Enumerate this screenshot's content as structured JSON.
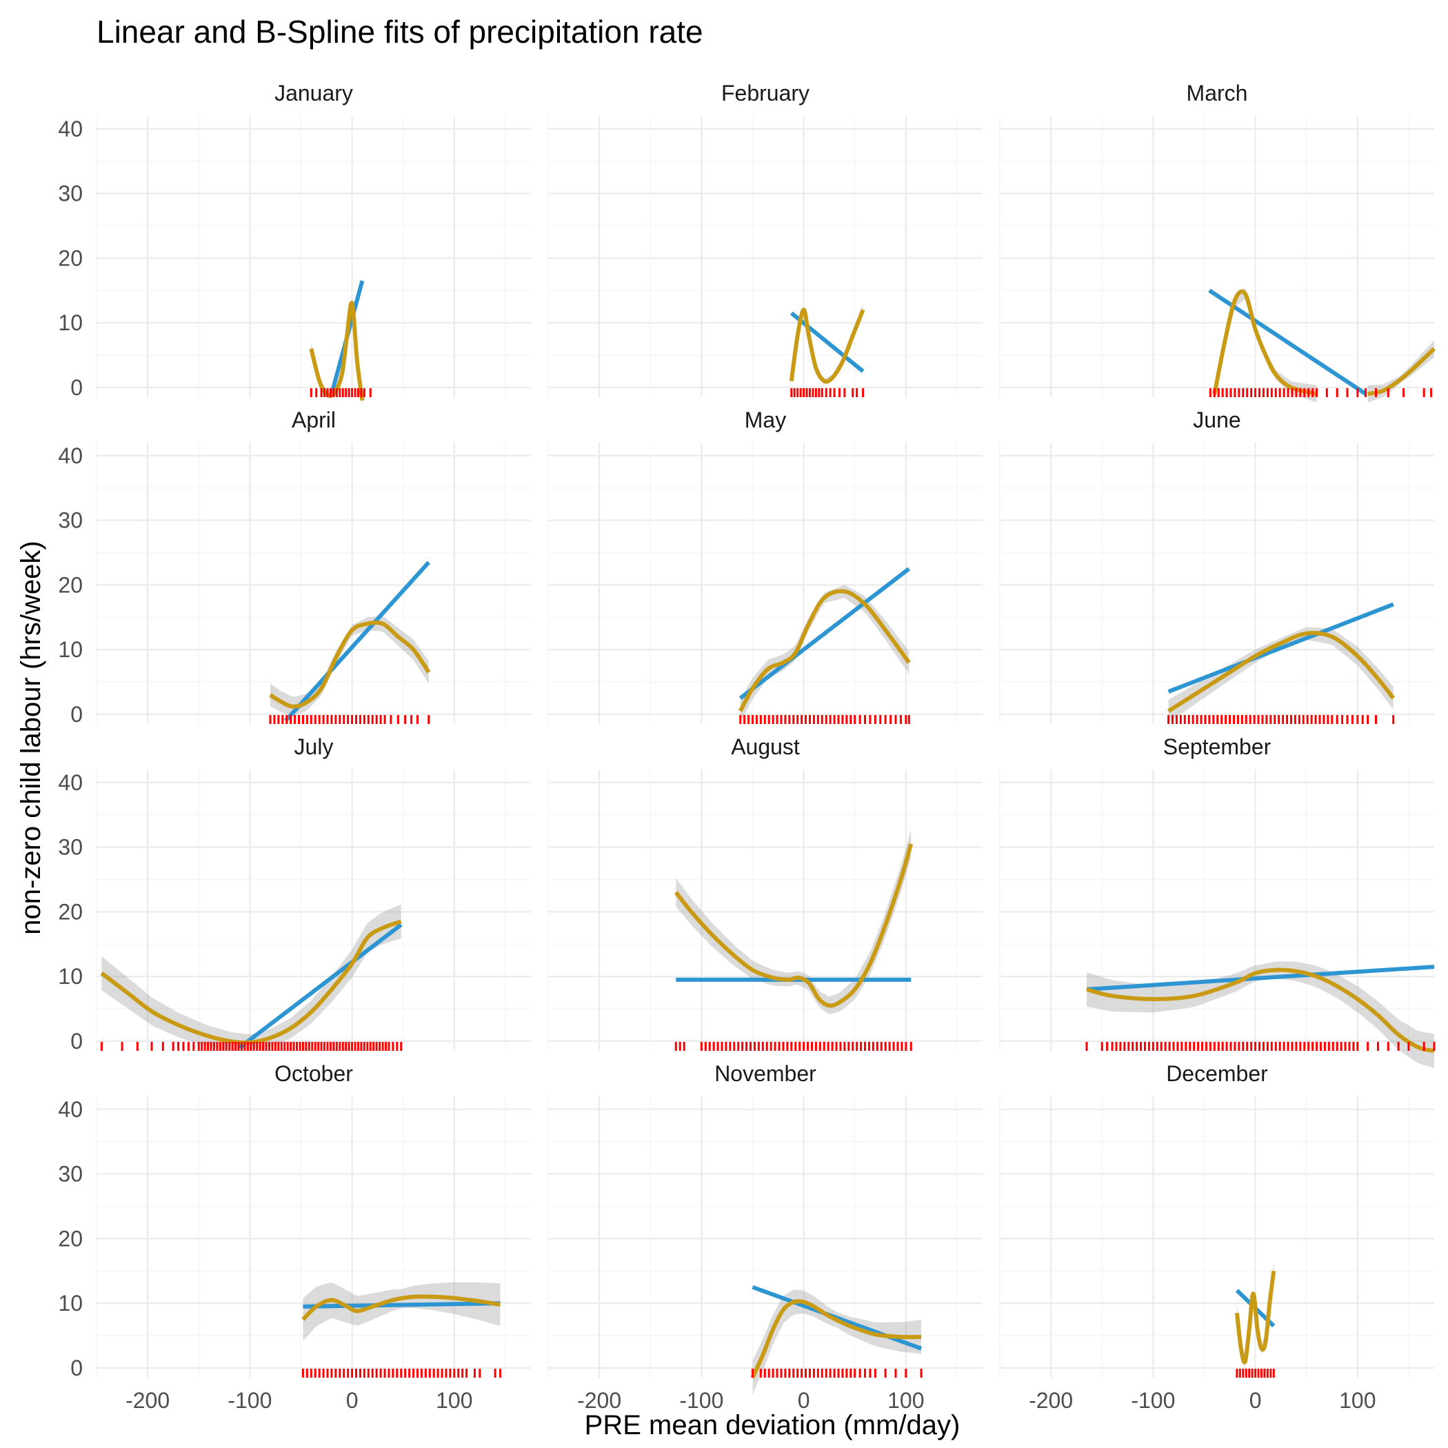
{
  "chart_data": {
    "type": "line",
    "title": "Linear and B-Spline fits of precipitation rate",
    "xlabel": "PRE mean deviation (mm/day)",
    "ylabel": "non-zero child labour (hrs/week)",
    "xlim": [
      -250,
      175
    ],
    "ylim": [
      -1.5,
      42
    ],
    "x_ticks": [
      -200,
      -100,
      0,
      100
    ],
    "y_ticks": [
      0,
      10,
      20,
      30,
      40
    ],
    "grid": true,
    "legend": "none",
    "colors": {
      "linear": "#2d96d2",
      "spline": "#c99a14",
      "band": "#999999",
      "rug": "#ff0000"
    },
    "facets": [
      {
        "name": "January",
        "linear": {
          "x": [
            -20,
            10
          ],
          "y": [
            -1,
            16.5
          ]
        },
        "spline": {
          "x": [
            -40,
            -32,
            -25,
            -18,
            -10,
            -5,
            0,
            5,
            10
          ],
          "y": [
            6,
            1,
            -1,
            -1,
            2,
            8,
            13,
            4,
            -2
          ]
        },
        "band": 0.4,
        "rug": [
          -40,
          -35,
          -30,
          -27,
          -24,
          -21,
          -18,
          -15,
          -12,
          -9,
          -6,
          -3,
          0,
          3,
          6,
          9,
          12,
          18
        ]
      },
      {
        "name": "February",
        "linear": {
          "x": [
            -12,
            58
          ],
          "y": [
            11.5,
            2.5
          ]
        },
        "spline": {
          "x": [
            -12,
            -6,
            0,
            5,
            12,
            20,
            28,
            38,
            48,
            58
          ],
          "y": [
            1,
            8,
            12,
            8,
            3,
            1,
            1.5,
            4,
            8,
            12
          ]
        },
        "band": 0.4,
        "rug": [
          -12,
          -9,
          -6,
          -3,
          0,
          3,
          6,
          9,
          12,
          15,
          18,
          22,
          26,
          30,
          35,
          40,
          48,
          52,
          58
        ]
      },
      {
        "name": "March",
        "linear": {
          "x": [
            -45,
            108
          ],
          "y": [
            15,
            -1
          ]
        },
        "spline": {
          "x": [
            -40,
            -30,
            -20,
            -10,
            0,
            10,
            20,
            35,
            60
          ],
          "y": [
            -1,
            7,
            13.5,
            14.5,
            9,
            5,
            2,
            0,
            -1
          ]
        },
        "spline2": {
          "x": [
            110,
            125,
            140,
            155,
            175
          ],
          "y": [
            -1,
            -0.5,
            1,
            3,
            6
          ]
        },
        "band": 0.6,
        "rug": [
          -44,
          -40,
          -36,
          -32,
          -28,
          -24,
          -20,
          -16,
          -12,
          -8,
          -4,
          0,
          4,
          8,
          12,
          16,
          20,
          24,
          28,
          32,
          36,
          40,
          44,
          48,
          52,
          56,
          60,
          70,
          80,
          90,
          100,
          108,
          118,
          130,
          145,
          165,
          172
        ]
      },
      {
        "name": "April",
        "linear": {
          "x": [
            -65,
            75
          ],
          "y": [
            -1,
            23.5
          ]
        },
        "spline": {
          "x": [
            -80,
            -70,
            -58,
            -45,
            -30,
            -15,
            0,
            15,
            30,
            45,
            60,
            75
          ],
          "y": [
            3,
            2,
            1.2,
            1.8,
            4,
            9,
            13,
            14,
            14,
            12,
            10,
            6.5
          ]
        },
        "band": 0.8,
        "rug": [
          -80,
          -76,
          -72,
          -68,
          -64,
          -60,
          -56,
          -52,
          -48,
          -44,
          -40,
          -36,
          -32,
          -28,
          -24,
          -20,
          -16,
          -12,
          -8,
          -4,
          0,
          4,
          8,
          12,
          16,
          20,
          24,
          28,
          32,
          38,
          45,
          52,
          58,
          64,
          75
        ]
      },
      {
        "name": "May",
        "linear": {
          "x": [
            -62,
            103
          ],
          "y": [
            2.5,
            22.5
          ]
        },
        "spline": {
          "x": [
            -62,
            -50,
            -35,
            -20,
            -8,
            5,
            20,
            40,
            60,
            80,
            103
          ],
          "y": [
            0.5,
            4,
            7,
            8,
            9.5,
            14,
            18,
            19,
            17,
            13,
            8
          ]
        },
        "band": 0.8,
        "rug": [
          -62,
          -58,
          -54,
          -50,
          -46,
          -42,
          -38,
          -34,
          -30,
          -26,
          -22,
          -18,
          -14,
          -10,
          -6,
          -2,
          2,
          6,
          10,
          14,
          18,
          22,
          26,
          30,
          34,
          38,
          42,
          46,
          50,
          55,
          60,
          65,
          70,
          75,
          80,
          85,
          90,
          95,
          100,
          103
        ]
      },
      {
        "name": "June",
        "linear": {
          "x": [
            -85,
            135
          ],
          "y": [
            3.5,
            17
          ]
        },
        "spline": {
          "x": [
            -85,
            -60,
            -30,
            0,
            25,
            50,
            75,
            100,
            120,
            135
          ],
          "y": [
            0.5,
            3,
            6,
            9,
            11,
            12.5,
            12,
            9,
            5.5,
            2.5
          ]
        },
        "band": 0.8,
        "rug": [
          -85,
          -81,
          -77,
          -73,
          -69,
          -65,
          -61,
          -57,
          -53,
          -49,
          -45,
          -41,
          -37,
          -33,
          -29,
          -25,
          -21,
          -17,
          -13,
          -9,
          -5,
          -1,
          3,
          7,
          11,
          15,
          19,
          23,
          27,
          31,
          35,
          39,
          43,
          47,
          51,
          55,
          59,
          63,
          67,
          71,
          75,
          80,
          85,
          90,
          95,
          100,
          105,
          110,
          118,
          135
        ]
      },
      {
        "name": "July",
        "linear": {
          "x": [
            -110,
            48
          ],
          "y": [
            -1,
            18
          ]
        },
        "spline": {
          "x": [
            -245,
            -220,
            -195,
            -170,
            -145,
            -120,
            -100,
            -80,
            -60,
            -40,
            -20,
            0,
            15,
            30,
            48
          ],
          "y": [
            10.5,
            7.5,
            4.5,
            2.5,
            1,
            0,
            -0.2,
            0.5,
            2,
            4.5,
            8,
            12,
            16,
            17.5,
            18.5
          ]
        },
        "band": 1.2,
        "rug": [
          -245,
          -225,
          -210,
          -196,
          -185,
          -175,
          -170,
          -165,
          -160,
          -155,
          -150,
          -147,
          -144,
          -141,
          -138,
          -135,
          -132,
          -129,
          -126,
          -123,
          -120,
          -117,
          -114,
          -111,
          -108,
          -105,
          -102,
          -99,
          -96,
          -93,
          -90,
          -87,
          -84,
          -81,
          -78,
          -75,
          -72,
          -69,
          -66,
          -63,
          -60,
          -57,
          -54,
          -51,
          -48,
          -45,
          -42,
          -39,
          -36,
          -33,
          -30,
          -27,
          -24,
          -21,
          -18,
          -15,
          -12,
          -9,
          -6,
          -3,
          0,
          3,
          6,
          9,
          12,
          15,
          18,
          21,
          24,
          27,
          30,
          33,
          36,
          40,
          44,
          48
        ]
      },
      {
        "name": "August",
        "linear": {
          "x": [
            -125,
            105
          ],
          "y": [
            9.5,
            9.5
          ]
        },
        "spline": {
          "x": [
            -125,
            -110,
            -90,
            -70,
            -50,
            -30,
            -15,
            -5,
            5,
            15,
            25,
            35,
            50,
            65,
            80,
            95,
            105
          ],
          "y": [
            23,
            20,
            16.5,
            13.5,
            11,
            9.8,
            9.5,
            9.8,
            9,
            6.5,
            5.5,
            6,
            8,
            12,
            18,
            25,
            30.5
          ]
        },
        "band": 1,
        "rug": [
          -125,
          -121,
          -117,
          -100,
          -96,
          -92,
          -88,
          -84,
          -80,
          -76,
          -72,
          -68,
          -64,
          -60,
          -56,
          -52,
          -48,
          -44,
          -40,
          -36,
          -32,
          -28,
          -24,
          -20,
          -16,
          -12,
          -8,
          -4,
          0,
          4,
          8,
          12,
          16,
          20,
          24,
          28,
          32,
          36,
          40,
          44,
          48,
          52,
          56,
          60,
          64,
          68,
          72,
          76,
          80,
          84,
          88,
          92,
          96,
          100,
          105
        ]
      },
      {
        "name": "September",
        "linear": {
          "x": [
            -165,
            175
          ],
          "y": [
            8,
            11.5
          ]
        },
        "spline": {
          "x": [
            -165,
            -140,
            -100,
            -60,
            -20,
            0,
            20,
            40,
            60,
            80,
            100,
            120,
            140,
            160,
            175
          ],
          "y": [
            8,
            7,
            6.5,
            7,
            9,
            10.5,
            11,
            10.8,
            10,
            8.5,
            6.5,
            4,
            1,
            -1,
            -1.5
          ]
        },
        "band": 1.2,
        "rug": [
          -165,
          -150,
          -145,
          -140,
          -136,
          -132,
          -128,
          -124,
          -120,
          -116,
          -112,
          -108,
          -104,
          -100,
          -96,
          -92,
          -88,
          -84,
          -80,
          -76,
          -72,
          -68,
          -64,
          -60,
          -56,
          -52,
          -48,
          -44,
          -40,
          -36,
          -32,
          -28,
          -24,
          -20,
          -16,
          -12,
          -8,
          -4,
          0,
          4,
          8,
          12,
          16,
          20,
          24,
          28,
          32,
          36,
          40,
          44,
          48,
          52,
          56,
          60,
          64,
          68,
          72,
          76,
          80,
          84,
          88,
          92,
          96,
          100,
          110,
          120,
          130,
          140,
          150,
          165,
          175
        ]
      },
      {
        "name": "October",
        "linear": {
          "x": [
            -48,
            145
          ],
          "y": [
            9.5,
            10
          ]
        },
        "spline": {
          "x": [
            -48,
            -35,
            -20,
            -5,
            5,
            20,
            40,
            60,
            80,
            100,
            125,
            145
          ],
          "y": [
            7.5,
            9.5,
            10.5,
            9.5,
            8.8,
            9.5,
            10.5,
            11,
            11,
            10.8,
            10.3,
            9.8
          ]
        },
        "band": 1.5,
        "rug": [
          -48,
          -44,
          -40,
          -36,
          -32,
          -28,
          -24,
          -20,
          -16,
          -12,
          -8,
          -4,
          0,
          4,
          8,
          12,
          16,
          20,
          24,
          28,
          32,
          36,
          40,
          44,
          48,
          52,
          56,
          60,
          64,
          68,
          72,
          76,
          80,
          84,
          88,
          92,
          96,
          100,
          104,
          108,
          112,
          120,
          125,
          140,
          145
        ]
      },
      {
        "name": "November",
        "linear": {
          "x": [
            -50,
            115
          ],
          "y": [
            12.5,
            3
          ]
        },
        "spline": {
          "x": [
            -50,
            -40,
            -30,
            -20,
            -10,
            0,
            10,
            25,
            45,
            70,
            95,
            115
          ],
          "y": [
            -1.5,
            2,
            6,
            9,
            10.2,
            10.2,
            9.5,
            8,
            6.5,
            5.2,
            4.8,
            4.8
          ]
        },
        "band": 1.2,
        "rug": [
          -50,
          -42,
          -38,
          -34,
          -30,
          -26,
          -22,
          -18,
          -14,
          -10,
          -6,
          -2,
          2,
          6,
          10,
          14,
          18,
          22,
          26,
          30,
          34,
          38,
          42,
          46,
          50,
          55,
          60,
          65,
          70,
          80,
          90,
          100,
          115
        ]
      },
      {
        "name": "December",
        "linear": {
          "x": [
            -18,
            18
          ],
          "y": [
            12,
            6.5
          ]
        },
        "spline": {
          "x": [
            -18,
            -14,
            -10,
            -6,
            -2,
            2,
            6,
            10,
            14,
            18
          ],
          "y": [
            8.5,
            3,
            1,
            6,
            11.5,
            6,
            3,
            4,
            10,
            15
          ]
        },
        "band": 0.6,
        "rug": [
          -18,
          -15,
          -12,
          -9,
          -6,
          -3,
          0,
          3,
          6,
          9,
          12,
          15,
          18
        ]
      }
    ]
  }
}
